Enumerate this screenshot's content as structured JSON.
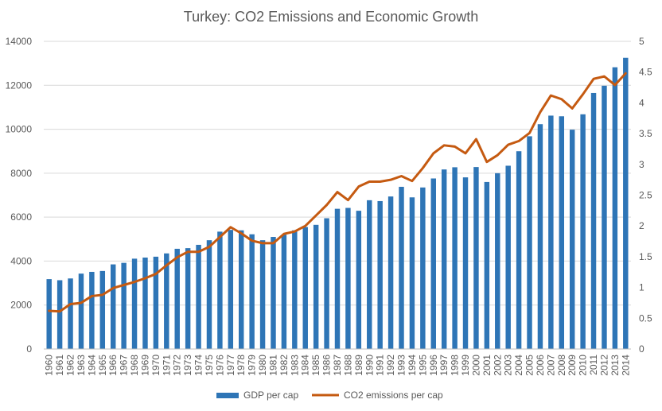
{
  "chart_data": {
    "type": "bar",
    "title": "Turkey: CO2 Emissions and Economic Growth",
    "categories": [
      "1960",
      "1961",
      "1962",
      "1963",
      "1964",
      "1965",
      "1966",
      "1967",
      "1968",
      "1969",
      "1970",
      "1971",
      "1972",
      "1973",
      "1974",
      "1975",
      "1976",
      "1977",
      "1978",
      "1979",
      "1980",
      "1981",
      "1982",
      "1983",
      "1984",
      "1985",
      "1986",
      "1987",
      "1988",
      "1989",
      "1990",
      "1991",
      "1992",
      "1993",
      "1994",
      "1995",
      "1996",
      "1997",
      "1998",
      "1999",
      "2000",
      "2001",
      "2002",
      "2003",
      "2004",
      "2005",
      "2006",
      "2007",
      "2008",
      "2009",
      "2010",
      "2011",
      "2012",
      "2013",
      "2014"
    ],
    "series": [
      {
        "name": "GDP per cap",
        "type": "bar",
        "axis": "left",
        "color": "#2E75B6",
        "values": [
          3180,
          3130,
          3210,
          3430,
          3510,
          3550,
          3850,
          3920,
          4110,
          4160,
          4200,
          4350,
          4560,
          4590,
          4740,
          4950,
          5340,
          5420,
          5400,
          5220,
          4950,
          5100,
          5200,
          5400,
          5550,
          5650,
          5950,
          6380,
          6420,
          6290,
          6770,
          6730,
          6940,
          7380,
          6900,
          7350,
          7760,
          8170,
          8270,
          7810,
          8280,
          7600,
          8000,
          8340,
          9000,
          9680,
          10230,
          10620,
          10590,
          9980,
          10680,
          11650,
          11980,
          12820,
          13250
        ]
      },
      {
        "name": "CO2 emissions per cap",
        "type": "line",
        "axis": "right",
        "color": "#C55A11",
        "values": [
          0.62,
          0.61,
          0.73,
          0.75,
          0.86,
          0.88,
          0.99,
          1.04,
          1.09,
          1.15,
          1.22,
          1.36,
          1.49,
          1.58,
          1.58,
          1.66,
          1.82,
          1.98,
          1.88,
          1.76,
          1.72,
          1.72,
          1.87,
          1.91,
          2.0,
          2.17,
          2.34,
          2.55,
          2.42,
          2.64,
          2.72,
          2.72,
          2.75,
          2.81,
          2.73,
          2.94,
          3.18,
          3.31,
          3.29,
          3.18,
          3.41,
          3.04,
          3.15,
          3.32,
          3.38,
          3.51,
          3.85,
          4.12,
          4.06,
          3.91,
          4.14,
          4.39,
          4.43,
          4.29,
          4.48
        ]
      }
    ],
    "y_left": {
      "min": 0,
      "max": 14000,
      "ticks": [
        0,
        2000,
        4000,
        6000,
        8000,
        10000,
        12000,
        14000
      ]
    },
    "y_right": {
      "min": 0,
      "max": 5,
      "ticks": [
        "0",
        "0.5",
        "1",
        "1.5",
        "2",
        "2.5",
        "3",
        "3.5",
        "4",
        "4.5",
        "5"
      ]
    },
    "grid": true,
    "legend_position": "bottom"
  }
}
